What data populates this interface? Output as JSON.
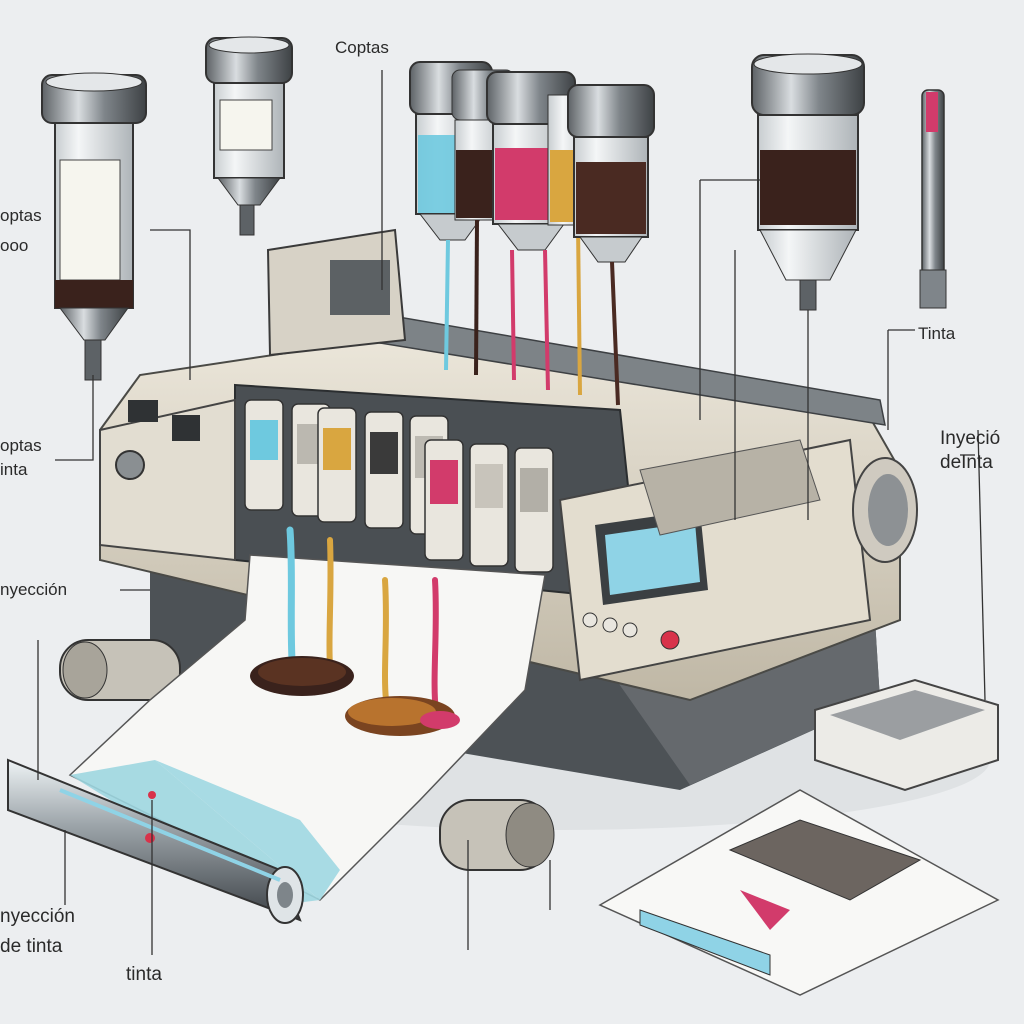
{
  "labels": {
    "top_center": "Coptas",
    "left_upper_1": "optas",
    "left_upper_2": "ooo",
    "left_mid_1": "optas",
    "left_mid_2": "inta",
    "left_lower": "nyección",
    "right_tinta": "Tinta",
    "right_inyeccion_1": "Inyeció",
    "right_inyeccion_2": "deInta",
    "bottom_left_1": "nyección",
    "bottom_left_2": "de tinta",
    "bottom_center": "tinta"
  },
  "ink_colors": {
    "cyan": "#6ec9df",
    "black": "#3a221c",
    "magenta": "#d23b6b",
    "yellow": "#d9a640",
    "dark_brown": "#4a2a22"
  },
  "machine_colors": {
    "body": "#d9d3c4",
    "metal": "#9aa0a4",
    "screen": "#8fd3e6",
    "button_red": "#d8324a"
  },
  "icons": [
    "ink-vial-icon",
    "ink-cartridge-icon",
    "printer-icon",
    "paper-roll-icon",
    "control-panel-icon",
    "sample-print-icon"
  ]
}
